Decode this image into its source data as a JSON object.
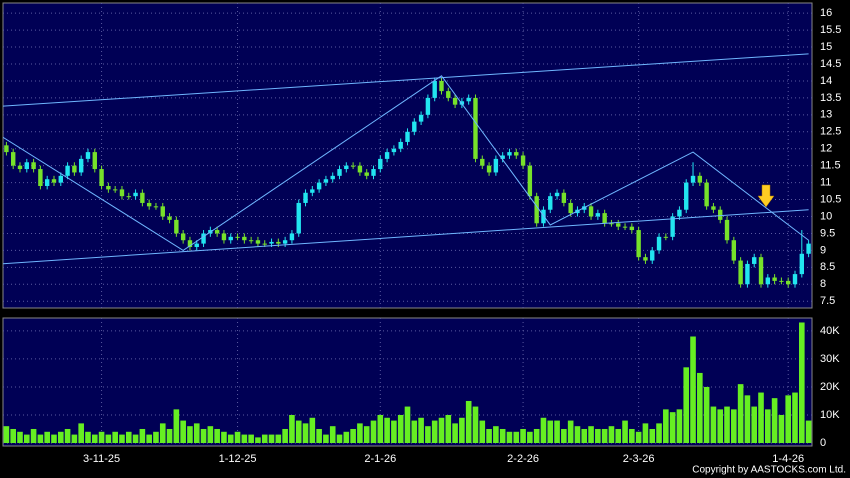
{
  "chart_data": {
    "type": "candlestick",
    "categories": [
      null,
      null,
      null,
      null,
      null,
      null,
      null,
      null,
      null,
      null,
      null,
      null,
      null,
      null,
      "3-11-25",
      null,
      null,
      null,
      null,
      null,
      null,
      null,
      null,
      null,
      null,
      null,
      null,
      null,
      null,
      null,
      null,
      null,
      null,
      null,
      "1-12-25",
      null,
      null,
      null,
      null,
      null,
      null,
      null,
      null,
      null,
      null,
      null,
      null,
      null,
      null,
      null,
      null,
      null,
      null,
      null,
      null,
      "2-1-26",
      null,
      null,
      null,
      null,
      null,
      null,
      null,
      null,
      null,
      null,
      null,
      null,
      null,
      null,
      null,
      null,
      null,
      null,
      null,
      null,
      "2-2-26",
      null,
      null,
      null,
      null,
      null,
      null,
      null,
      null,
      null,
      null,
      null,
      null,
      null,
      null,
      null,
      null,
      "2-3-26",
      null,
      null,
      null,
      null,
      null,
      null,
      null,
      null,
      null,
      null,
      null,
      null,
      null,
      null,
      null,
      null,
      null,
      null,
      null,
      null,
      null,
      "1-4-26",
      null,
      null,
      null
    ],
    "open": [
      12.1,
      11.9,
      11.5,
      11.4,
      11.6,
      11.4,
      10.9,
      11.1,
      11.0,
      11.2,
      11.5,
      11.3,
      11.7,
      11.9,
      11.4,
      10.9,
      10.8,
      10.8,
      10.6,
      10.6,
      10.7,
      10.4,
      10.3,
      10.3,
      10.0,
      9.9,
      9.5,
      9.3,
      9.1,
      9.2,
      9.5,
      9.6,
      9.5,
      9.3,
      9.4,
      9.4,
      9.3,
      9.3,
      9.2,
      9.2,
      9.25,
      9.2,
      9.3,
      9.5,
      10.4,
      10.7,
      10.8,
      11.0,
      11.1,
      11.2,
      11.4,
      11.5,
      11.5,
      11.3,
      11.2,
      11.4,
      11.7,
      11.9,
      12.0,
      12.2,
      12.5,
      12.8,
      13.0,
      13.5,
      14.0,
      13.7,
      13.5,
      13.3,
      13.4,
      13.5,
      11.7,
      11.5,
      11.3,
      11.7,
      11.8,
      11.9,
      11.8,
      11.5,
      10.6,
      9.8,
      10.2,
      10.6,
      10.7,
      10.4,
      10.1,
      10.2,
      10.3,
      10.0,
      10.1,
      9.8,
      9.8,
      9.7,
      9.7,
      9.6,
      8.8,
      8.7,
      9.0,
      9.4,
      9.4,
      10.0,
      10.2,
      11.0,
      11.2,
      11.0,
      10.3,
      10.2,
      9.9,
      9.3,
      8.7,
      8.0,
      8.6,
      8.8,
      8.0,
      8.2,
      8.1,
      8.1,
      8.0,
      8.3,
      8.9
    ],
    "high": [
      12.2,
      12.0,
      11.6,
      11.7,
      11.7,
      11.5,
      11.2,
      11.2,
      11.3,
      11.6,
      11.6,
      11.8,
      12.0,
      12.0,
      11.5,
      11.0,
      10.9,
      10.9,
      10.7,
      10.8,
      10.8,
      10.5,
      10.4,
      10.4,
      10.1,
      10.0,
      9.6,
      9.4,
      9.3,
      9.6,
      9.7,
      9.7,
      9.6,
      9.5,
      9.5,
      9.5,
      9.4,
      9.4,
      9.3,
      9.35,
      9.35,
      9.4,
      9.6,
      10.5,
      10.8,
      10.9,
      11.1,
      11.2,
      11.3,
      11.5,
      11.6,
      11.6,
      11.6,
      11.4,
      11.5,
      11.8,
      12.0,
      12.1,
      12.3,
      12.6,
      12.9,
      13.1,
      13.6,
      14.1,
      14.1,
      13.8,
      13.6,
      13.5,
      13.6,
      13.6,
      11.8,
      11.6,
      11.8,
      11.9,
      12.0,
      12.0,
      11.9,
      11.6,
      10.7,
      10.3,
      10.7,
      10.8,
      10.8,
      10.5,
      10.3,
      10.4,
      10.4,
      10.2,
      10.2,
      9.9,
      9.9,
      9.8,
      9.8,
      9.7,
      8.9,
      9.1,
      9.5,
      9.5,
      10.1,
      10.3,
      11.1,
      11.6,
      11.3,
      11.1,
      10.4,
      10.3,
      10.0,
      9.4,
      8.8,
      8.7,
      8.9,
      8.9,
      8.3,
      8.3,
      8.2,
      8.2,
      8.4,
      9.6,
      9.3
    ],
    "low": [
      11.8,
      11.4,
      11.3,
      11.3,
      11.3,
      10.8,
      10.8,
      10.9,
      10.9,
      11.1,
      11.2,
      11.2,
      11.6,
      11.3,
      10.8,
      10.7,
      10.7,
      10.5,
      10.5,
      10.5,
      10.3,
      10.2,
      10.2,
      9.9,
      9.8,
      9.4,
      9.2,
      9.0,
      9.0,
      9.1,
      9.4,
      9.4,
      9.2,
      9.2,
      9.3,
      9.2,
      9.2,
      9.1,
      9.1,
      9.1,
      9.1,
      9.1,
      9.2,
      9.4,
      10.3,
      10.6,
      10.7,
      10.9,
      11.0,
      11.1,
      11.3,
      11.4,
      11.2,
      11.1,
      11.1,
      11.3,
      11.6,
      11.8,
      11.9,
      12.1,
      12.4,
      12.7,
      12.9,
      13.4,
      13.6,
      13.4,
      13.2,
      13.2,
      13.3,
      11.6,
      11.4,
      11.2,
      11.2,
      11.6,
      11.7,
      11.7,
      11.4,
      10.5,
      9.7,
      9.7,
      10.1,
      10.5,
      10.3,
      10.0,
      10.0,
      10.1,
      9.9,
      9.9,
      9.7,
      9.7,
      9.6,
      9.6,
      9.5,
      8.7,
      8.6,
      8.6,
      8.9,
      9.3,
      9.3,
      9.9,
      10.1,
      10.9,
      10.9,
      10.2,
      10.1,
      9.8,
      9.2,
      8.6,
      7.9,
      7.9,
      8.5,
      7.9,
      7.9,
      8.0,
      8.0,
      7.9,
      7.9,
      8.2,
      8.8
    ],
    "close": [
      11.9,
      11.5,
      11.4,
      11.6,
      11.4,
      10.9,
      11.1,
      11.0,
      11.2,
      11.5,
      11.3,
      11.7,
      11.9,
      11.4,
      10.9,
      10.8,
      10.8,
      10.6,
      10.6,
      10.7,
      10.4,
      10.3,
      10.3,
      10.0,
      9.9,
      9.5,
      9.3,
      9.1,
      9.2,
      9.5,
      9.6,
      9.5,
      9.3,
      9.4,
      9.4,
      9.3,
      9.3,
      9.2,
      9.2,
      9.25,
      9.2,
      9.3,
      9.5,
      10.4,
      10.7,
      10.8,
      11.0,
      11.1,
      11.2,
      11.4,
      11.5,
      11.5,
      11.3,
      11.2,
      11.4,
      11.7,
      11.9,
      12.0,
      12.2,
      12.5,
      12.8,
      13.0,
      13.5,
      14.0,
      13.7,
      13.5,
      13.3,
      13.4,
      13.5,
      11.7,
      11.5,
      11.3,
      11.7,
      11.8,
      11.9,
      11.8,
      11.5,
      10.6,
      9.8,
      10.2,
      10.6,
      10.7,
      10.4,
      10.1,
      10.2,
      10.3,
      10.0,
      10.1,
      9.8,
      9.8,
      9.7,
      9.7,
      9.6,
      8.8,
      8.7,
      9.0,
      9.4,
      9.4,
      10.0,
      10.2,
      11.0,
      11.2,
      11.0,
      10.3,
      10.2,
      9.9,
      9.3,
      8.7,
      8.0,
      8.6,
      8.8,
      8.0,
      8.2,
      8.1,
      8.1,
      8.0,
      8.3,
      8.9,
      9.2
    ],
    "up_color": "#22e5f0",
    "down_color": "#77e22a",
    "ylim": [
      7.3,
      16.3
    ],
    "yticks": [
      7.5,
      8,
      8.5,
      9,
      9.5,
      10,
      10.5,
      11,
      11.5,
      12,
      12.5,
      13,
      13.5,
      14,
      14.5,
      15,
      15.5,
      16
    ],
    "grid": true,
    "trendlines": [
      {
        "color": "#6fb6ff",
        "x": [
          -1,
          118
        ],
        "y": [
          13.25,
          14.8
        ]
      },
      {
        "color": "#6fb6ff",
        "x": [
          -1,
          118
        ],
        "y": [
          8.6,
          10.2
        ]
      },
      {
        "color": "#6fb6ff",
        "x": [
          -1,
          26,
          64,
          80,
          101,
          118
        ],
        "y": [
          12.4,
          9.0,
          14.15,
          9.75,
          11.9,
          9.3
        ]
      }
    ],
    "volume": {
      "type": "bar",
      "color": "#66ee22",
      "values": [
        6000,
        5000,
        4000,
        3000,
        5000,
        3000,
        4000,
        3000,
        4000,
        5000,
        3000,
        7000,
        4000,
        3000,
        4000,
        3000,
        4000,
        3000,
        4000,
        3000,
        5000,
        3000,
        4000,
        7000,
        5000,
        12000,
        8000,
        6000,
        7000,
        5000,
        6000,
        5000,
        4000,
        3000,
        4000,
        3000,
        3000,
        2000,
        3000,
        3000,
        3000,
        5000,
        10000,
        8000,
        7000,
        9000,
        5000,
        3000,
        6000,
        3000,
        4000,
        5000,
        7000,
        6000,
        8000,
        10000,
        9000,
        8000,
        10000,
        13000,
        8000,
        9000,
        6000,
        8000,
        9000,
        10000,
        7000,
        9000,
        15000,
        13000,
        8000,
        5000,
        6000,
        5000,
        4000,
        4000,
        5000,
        4000,
        5000,
        9000,
        8000,
        8000,
        5000,
        8000,
        6000,
        5000,
        6000,
        5000,
        5000,
        6000,
        5000,
        8000,
        5000,
        4000,
        7000,
        5000,
        7000,
        12000,
        11000,
        12000,
        27000,
        38000,
        25000,
        20000,
        13000,
        12000,
        13000,
        12000,
        21000,
        17000,
        13000,
        18000,
        12000,
        16000,
        10000,
        17000,
        18000,
        43000,
        8000
      ],
      "ylim": [
        0,
        44600
      ],
      "yticks": [
        0,
        {
          "value": 10000,
          "label": "10K"
        },
        {
          "value": 20000,
          "label": "20K"
        },
        {
          "value": 30000,
          "label": "30K"
        },
        {
          "value": 40000,
          "label": "40K"
        }
      ]
    }
  },
  "footer": "Copyright by AASTOCKS.com Ltd."
}
